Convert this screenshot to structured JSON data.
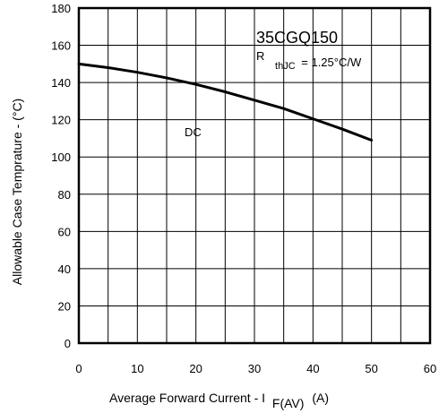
{
  "chart_data": {
    "type": "line",
    "title": "",
    "xlabel": {
      "main": "Average Forward Current  - I",
      "subscript": "F(AV)",
      "unit": "(A)"
    },
    "ylabel": "Allowable Case Temprature - (°C)",
    "xlim": [
      0,
      60
    ],
    "ylim": [
      0,
      180
    ],
    "xticks": [
      0,
      10,
      20,
      30,
      40,
      50,
      60
    ],
    "yticks": [
      0,
      20,
      40,
      60,
      80,
      100,
      120,
      140,
      160,
      180
    ],
    "x_minor_step": 5,
    "grid": true,
    "series": [
      {
        "name": "DC",
        "x": [
          0,
          5,
          10,
          15,
          20,
          25,
          30,
          35,
          40,
          45,
          50
        ],
        "values": [
          150,
          148,
          145.5,
          142.5,
          139,
          135,
          130.5,
          126,
          120.5,
          115,
          109
        ]
      }
    ],
    "annotations": {
      "part_number": "35CGQ150",
      "rth_prefix": "R",
      "rth_subscript": "thJC",
      "rth_value": "=  1.25°C/W",
      "series_label": "DC"
    }
  }
}
